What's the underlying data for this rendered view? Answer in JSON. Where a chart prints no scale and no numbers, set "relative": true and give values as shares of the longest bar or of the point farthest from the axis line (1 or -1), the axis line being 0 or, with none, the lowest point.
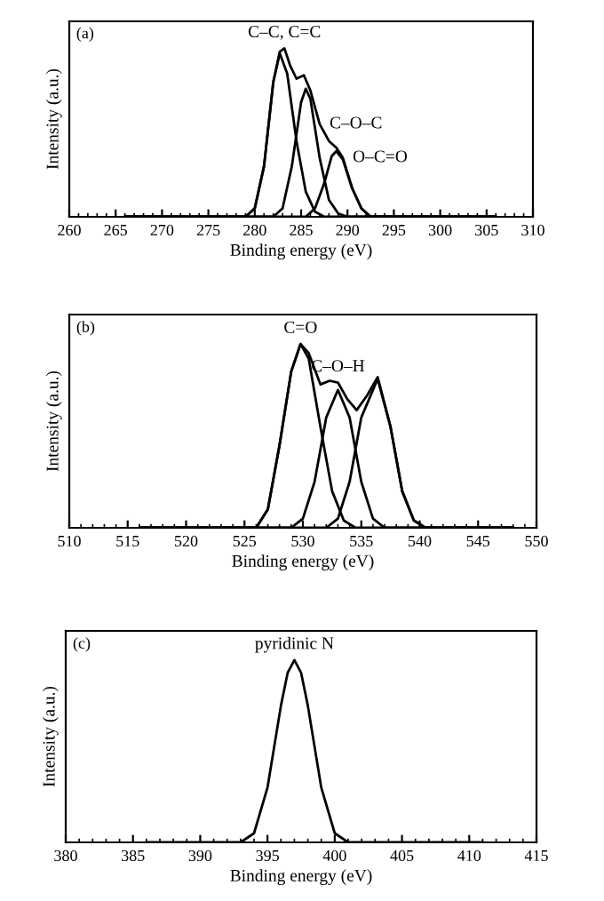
{
  "chart_data": [
    {
      "type": "line",
      "title": "(a)",
      "xlabel": "Binding energy (eV)",
      "ylabel": "Intensity (a.u.)",
      "relative": true,
      "xlim": [
        260,
        310
      ],
      "xticks": [
        260,
        265,
        270,
        275,
        280,
        285,
        290,
        295,
        300,
        305,
        310
      ],
      "grid": false,
      "legend": false,
      "marker": "none",
      "line_style": "solid",
      "annotations": [
        {
          "text": "C–C, C=C",
          "x": 283.2,
          "y": 1.0
        },
        {
          "text": "C–O–C",
          "x": 287,
          "y": 0.55
        },
        {
          "text": "O–C=O",
          "x": 289.5,
          "y": 0.35
        }
      ],
      "series": [
        {
          "color": "#000000",
          "x": [
            266,
            279,
            280,
            281,
            282,
            282.7,
            283.5,
            284.5,
            285.5,
            286.5,
            287.5,
            306
          ],
          "values": [
            0,
            0,
            0.05,
            0.3,
            0.8,
            0.97,
            0.85,
            0.45,
            0.15,
            0.03,
            0,
            0
          ]
        },
        {
          "color": "#000000",
          "x": [
            266,
            282,
            283,
            284,
            285,
            285.5,
            286,
            287,
            288,
            289,
            290,
            306
          ],
          "values": [
            0,
            0,
            0.05,
            0.3,
            0.68,
            0.76,
            0.7,
            0.35,
            0.1,
            0.02,
            0,
            0
          ]
        },
        {
          "color": "#000000",
          "x": [
            266,
            285.5,
            286.5,
            287.5,
            288.3,
            288.8,
            289.5,
            290.5,
            291.5,
            292.5,
            306
          ],
          "values": [
            0,
            0,
            0.05,
            0.2,
            0.36,
            0.39,
            0.34,
            0.17,
            0.05,
            0,
            0
          ]
        },
        {
          "color": "#000000",
          "x": [
            266,
            279,
            280,
            281,
            282,
            282.7,
            283.2,
            283.8,
            284.5,
            285.3,
            286,
            287,
            288,
            288.8,
            289.5,
            290.5,
            291.5,
            292.5,
            306
          ],
          "values": [
            0,
            0,
            0.05,
            0.3,
            0.8,
            0.98,
            1.0,
            0.9,
            0.82,
            0.84,
            0.75,
            0.55,
            0.45,
            0.41,
            0.35,
            0.17,
            0.05,
            0,
            0
          ]
        }
      ]
    },
    {
      "type": "line",
      "title": "(b)",
      "xlabel": "Binding energy (eV)",
      "ylabel": "Intensity (a.u.)",
      "relative": true,
      "xlim": [
        510,
        550
      ],
      "xticks": [
        510,
        515,
        520,
        525,
        530,
        535,
        540,
        545,
        550
      ],
      "grid": false,
      "legend": false,
      "marker": "none",
      "line_style": "solid",
      "annotations": [
        {
          "text": "C=O",
          "x": 529.8,
          "y": 1.0
        },
        {
          "text": "C–O–H",
          "x": 533,
          "y": 0.79
        }
      ],
      "series": [
        {
          "color": "#000000",
          "x": [
            516,
            526,
            527,
            528,
            529,
            529.8,
            530.5,
            531.5,
            532.5,
            533.5,
            534.5,
            548
          ],
          "values": [
            0,
            0,
            0.1,
            0.45,
            0.85,
            1.0,
            0.92,
            0.55,
            0.2,
            0.04,
            0,
            0
          ]
        },
        {
          "color": "#000000",
          "x": [
            516,
            529,
            530,
            531,
            532,
            533,
            534,
            535,
            536,
            537,
            548
          ],
          "values": [
            0,
            0,
            0.05,
            0.25,
            0.6,
            0.75,
            0.6,
            0.25,
            0.05,
            0,
            0
          ]
        },
        {
          "color": "#000000",
          "x": [
            516,
            532,
            533,
            534,
            535,
            536.4,
            537.5,
            538.5,
            539.5,
            540.5,
            548
          ],
          "values": [
            0,
            0,
            0.05,
            0.25,
            0.6,
            0.81,
            0.55,
            0.2,
            0.04,
            0,
            0
          ]
        },
        {
          "color": "#000000",
          "x": [
            516,
            526,
            527,
            528,
            529,
            529.8,
            530.5,
            531.5,
            532.3,
            533,
            533.8,
            534.6,
            535.5,
            536.4,
            537.5,
            538.5,
            539.5,
            540.5,
            548
          ],
          "values": [
            0,
            0,
            0.1,
            0.45,
            0.85,
            1.0,
            0.95,
            0.78,
            0.8,
            0.79,
            0.7,
            0.64,
            0.72,
            0.82,
            0.55,
            0.2,
            0.04,
            0,
            0
          ]
        }
      ]
    },
    {
      "type": "line",
      "title": "(c)",
      "xlabel": "Binding energy (eV)",
      "ylabel": "Intensity (a.u.)",
      "relative": true,
      "xlim": [
        380,
        415
      ],
      "xticks": [
        380,
        385,
        390,
        395,
        400,
        405,
        410,
        415
      ],
      "grid": false,
      "legend": false,
      "marker": "none",
      "line_style": "solid",
      "annotations": [
        {
          "text": "pyridinic N",
          "x": 397,
          "y": 1.0
        }
      ],
      "series": [
        {
          "color": "#000000",
          "x": [
            386,
            393,
            394,
            395,
            396,
            396.5,
            397,
            397.5,
            398,
            399,
            400,
            401,
            411
          ],
          "values": [
            0,
            0,
            0.05,
            0.3,
            0.75,
            0.93,
            1.0,
            0.93,
            0.75,
            0.3,
            0.05,
            0,
            0
          ]
        }
      ]
    }
  ]
}
